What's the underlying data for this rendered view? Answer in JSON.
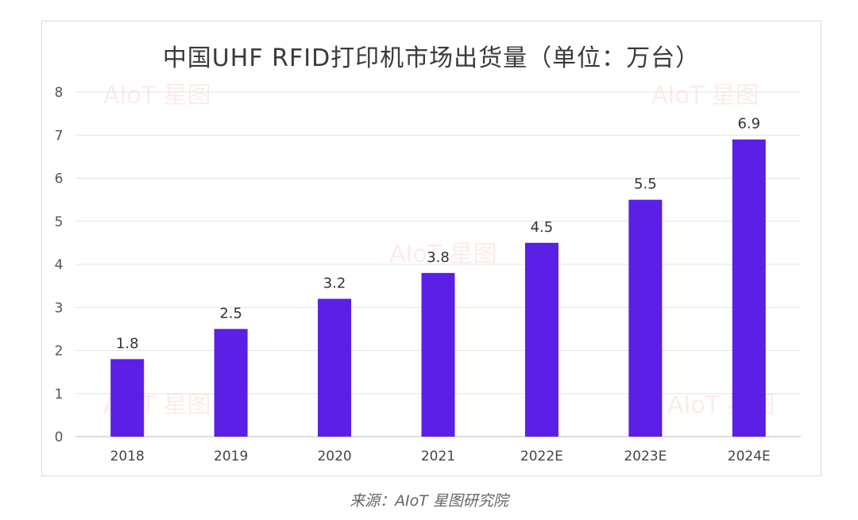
{
  "chart_data": {
    "type": "bar",
    "title": "中国UHF RFID打印机市场出货量（单位：万台）",
    "categories": [
      "2018",
      "2019",
      "2020",
      "2021",
      "2022E",
      "2023E",
      "2024E"
    ],
    "values": [
      1.8,
      2.5,
      3.2,
      3.8,
      4.5,
      5.5,
      6.9
    ],
    "data_labels": [
      "1.8",
      "2.5",
      "3.2",
      "3.8",
      "4.5",
      "5.5",
      "6.9"
    ],
    "y_ticks": [
      "0",
      "1",
      "2",
      "3",
      "4",
      "5",
      "6",
      "7",
      "8"
    ],
    "ylim": [
      0,
      8
    ],
    "grid": true,
    "legend": "none",
    "bar_color": "#5b1fe6",
    "source": "来源：AIoT 星图研究院"
  },
  "watermark_text": "AIoT 星图"
}
